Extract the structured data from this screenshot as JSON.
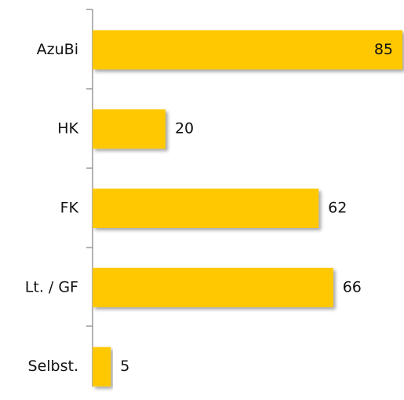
{
  "chart_data": {
    "type": "bar",
    "orientation": "horizontal",
    "categories": [
      "AzuBi",
      "HK",
      "FK",
      "Lt. / GF",
      "Selbst."
    ],
    "values": [
      85,
      20,
      62,
      66,
      5
    ],
    "color": "#ffc800"
  }
}
